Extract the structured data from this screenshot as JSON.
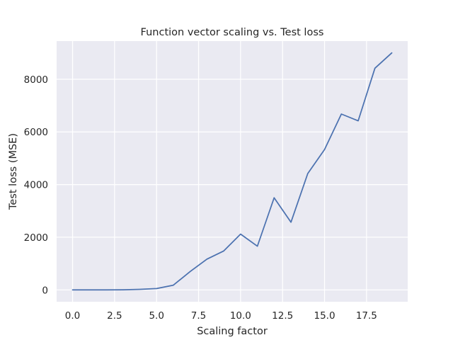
{
  "chart_data": {
    "type": "line",
    "title": "Function vector scaling vs. Test loss",
    "xlabel": "Scaling factor",
    "ylabel": "Test loss (MSE)",
    "xlim": [
      -0.95,
      19.95
    ],
    "ylim": [
      -450,
      9450
    ],
    "xticks": [
      0.0,
      2.5,
      5.0,
      7.5,
      10.0,
      12.5,
      15.0,
      17.5
    ],
    "xtick_labels": [
      "0.0",
      "2.5",
      "5.0",
      "7.5",
      "10.0",
      "12.5",
      "15.0",
      "17.5"
    ],
    "yticks": [
      0,
      2000,
      4000,
      6000,
      8000
    ],
    "ytick_labels": [
      "0",
      "2000",
      "4000",
      "6000",
      "8000"
    ],
    "grid": true,
    "series": [
      {
        "color": "#4c72b0",
        "x": [
          0,
          1,
          2,
          3,
          4,
          5,
          6,
          7,
          8,
          9,
          10,
          11,
          12,
          13,
          14,
          15,
          16,
          17,
          18,
          19
        ],
        "y": [
          0,
          0,
          2,
          5,
          20,
          50,
          180,
          700,
          1170,
          1480,
          2120,
          1660,
          3500,
          2570,
          4420,
          5330,
          6680,
          6420,
          8420,
          9000
        ]
      }
    ],
    "style": {
      "plot_background": "#eaeaf2",
      "grid_color": "#ffffff",
      "text_color": "#262626"
    }
  }
}
